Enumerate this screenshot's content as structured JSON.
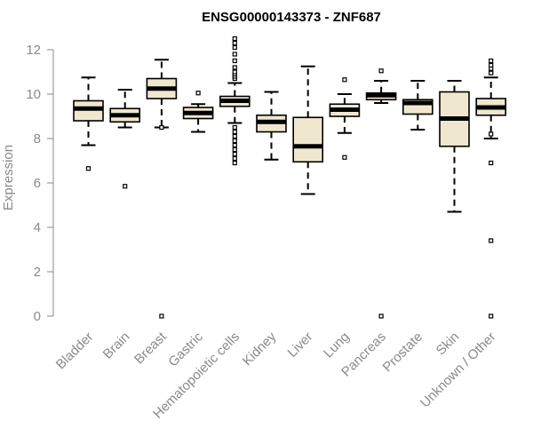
{
  "chart_data": {
    "type": "box",
    "title": "ENSG00000143373 - ZNF687",
    "ylabel": "Expression",
    "xlabel": "",
    "ylim": [
      0,
      12
    ],
    "yticks": [
      0,
      2,
      4,
      6,
      8,
      10,
      12
    ],
    "grid": false,
    "box_fill": "#efe8cf",
    "categories": [
      "Bladder",
      "Brain",
      "Breast",
      "Gastric",
      "Hematopoietic cells",
      "Kidney",
      "Liver",
      "Lung",
      "Pancreas",
      "Prostate",
      "Skin",
      "Unknown / Other"
    ],
    "boxes": [
      {
        "min": 7.7,
        "q1": 8.8,
        "median": 9.35,
        "q3": 9.7,
        "max": 10.75,
        "outliers": [
          6.65
        ]
      },
      {
        "min": 8.5,
        "q1": 8.75,
        "median": 9.05,
        "q3": 9.35,
        "max": 10.2,
        "outliers": [
          5.85
        ]
      },
      {
        "min": 8.5,
        "q1": 9.8,
        "median": 10.25,
        "q3": 10.7,
        "max": 11.55,
        "outliers": [
          8.5,
          0.0
        ]
      },
      {
        "min": 8.3,
        "q1": 8.9,
        "median": 9.15,
        "q3": 9.4,
        "max": 9.55,
        "outliers": [
          10.05
        ]
      },
      {
        "min": 8.7,
        "q1": 9.45,
        "median": 9.7,
        "q3": 9.9,
        "max": 10.5,
        "outliers": [
          10.7,
          10.8,
          10.9,
          11.0,
          11.2,
          11.5,
          11.8,
          12.1,
          12.3,
          12.5,
          8.5,
          8.3,
          8.1,
          7.9,
          7.7,
          7.5,
          7.3,
          7.1,
          6.9
        ]
      },
      {
        "min": 7.05,
        "q1": 8.3,
        "median": 8.75,
        "q3": 9.05,
        "max": 10.1,
        "outliers": []
      },
      {
        "min": 5.5,
        "q1": 6.95,
        "median": 7.65,
        "q3": 8.95,
        "max": 11.25,
        "outliers": []
      },
      {
        "min": 8.25,
        "q1": 9.0,
        "median": 9.3,
        "q3": 9.55,
        "max": 10.0,
        "outliers": [
          10.65,
          7.15
        ]
      },
      {
        "min": 9.6,
        "q1": 9.75,
        "median": 9.95,
        "q3": 10.05,
        "max": 10.6,
        "outliers": [
          11.05,
          0.0
        ]
      },
      {
        "min": 8.4,
        "q1": 9.1,
        "median": 9.6,
        "q3": 9.75,
        "max": 10.6,
        "outliers": []
      },
      {
        "min": 4.7,
        "q1": 7.65,
        "median": 8.9,
        "q3": 10.1,
        "max": 10.6,
        "outliers": []
      },
      {
        "min": 8.0,
        "q1": 9.05,
        "median": 9.4,
        "q3": 9.8,
        "max": 10.75,
        "outliers": [
          11.0,
          11.15,
          11.3,
          11.5,
          10.95,
          8.2,
          6.9,
          3.4,
          0.0
        ]
      }
    ]
  }
}
